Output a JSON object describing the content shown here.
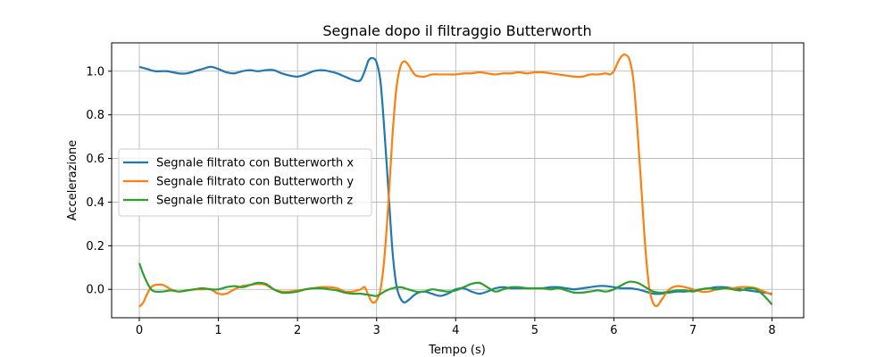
{
  "chart_data": {
    "type": "line",
    "title": "Segnale dopo il filtraggio Butterworth",
    "xlabel": "Tempo (s)",
    "ylabel": "Accelerazione",
    "xlim": [
      -0.35,
      8.4
    ],
    "ylim": [
      -0.13,
      1.13
    ],
    "xticks": [
      0,
      1,
      2,
      3,
      4,
      5,
      6,
      7,
      8
    ],
    "yticks": [
      0.0,
      0.2,
      0.4,
      0.6,
      0.8,
      1.0
    ],
    "grid": true,
    "legend_position": "center-left",
    "series": [
      {
        "name": "Segnale filtrato con Butterworth x",
        "color": "#1f77b4",
        "points": [
          [
            0,
            1.02
          ],
          [
            0.1,
            1.01
          ],
          [
            0.2,
            1.0
          ],
          [
            0.35,
            1.0
          ],
          [
            0.5,
            0.99
          ],
          [
            0.6,
            0.99
          ],
          [
            0.7,
            1.0
          ],
          [
            0.8,
            1.01
          ],
          [
            0.9,
            1.02
          ],
          [
            1.0,
            1.01
          ],
          [
            1.1,
            0.995
          ],
          [
            1.2,
            0.99
          ],
          [
            1.3,
            1.0
          ],
          [
            1.4,
            1.005
          ],
          [
            1.5,
            1.0
          ],
          [
            1.6,
            1.005
          ],
          [
            1.7,
            1.005
          ],
          [
            1.8,
            0.99
          ],
          [
            1.9,
            0.98
          ],
          [
            2.0,
            0.975
          ],
          [
            2.1,
            0.985
          ],
          [
            2.2,
            1.0
          ],
          [
            2.3,
            1.005
          ],
          [
            2.4,
            1.0
          ],
          [
            2.5,
            0.99
          ],
          [
            2.6,
            0.975
          ],
          [
            2.7,
            0.96
          ],
          [
            2.75,
            0.955
          ],
          [
            2.8,
            0.96
          ],
          [
            2.85,
            1.0
          ],
          [
            2.9,
            1.05
          ],
          [
            2.95,
            1.06
          ],
          [
            3.0,
            1.04
          ],
          [
            3.05,
            0.95
          ],
          [
            3.1,
            0.72
          ],
          [
            3.15,
            0.45
          ],
          [
            3.2,
            0.18
          ],
          [
            3.25,
            0.02
          ],
          [
            3.3,
            -0.04
          ],
          [
            3.35,
            -0.06
          ],
          [
            3.4,
            -0.05
          ],
          [
            3.5,
            -0.02
          ],
          [
            3.6,
            -0.01
          ],
          [
            3.7,
            -0.02
          ],
          [
            3.8,
            -0.03
          ],
          [
            3.9,
            -0.02
          ],
          [
            4.0,
            0.0
          ],
          [
            4.1,
            0.005
          ],
          [
            4.2,
            -0.01
          ],
          [
            4.3,
            -0.02
          ],
          [
            4.4,
            -0.01
          ],
          [
            4.5,
            0.005
          ],
          [
            4.6,
            0.01
          ],
          [
            4.7,
            0.005
          ],
          [
            4.8,
            0.005
          ],
          [
            4.9,
            0.005
          ],
          [
            5.0,
            0.005
          ],
          [
            5.1,
            0.005
          ],
          [
            5.2,
            0.01
          ],
          [
            5.3,
            0.01
          ],
          [
            5.4,
            0.005
          ],
          [
            5.5,
            0.0
          ],
          [
            5.6,
            0.005
          ],
          [
            5.7,
            0.01
          ],
          [
            5.8,
            0.015
          ],
          [
            5.9,
            0.015
          ],
          [
            6.0,
            0.01
          ],
          [
            6.1,
            0.005
          ],
          [
            6.2,
            0.005
          ],
          [
            6.3,
            0.0
          ],
          [
            6.4,
            -0.01
          ],
          [
            6.5,
            -0.02
          ],
          [
            6.6,
            -0.02
          ],
          [
            6.7,
            -0.015
          ],
          [
            6.8,
            -0.01
          ],
          [
            6.9,
            -0.01
          ],
          [
            7.0,
            -0.005
          ],
          [
            7.1,
            0.0
          ],
          [
            7.2,
            0.005
          ],
          [
            7.3,
            0.01
          ],
          [
            7.4,
            0.01
          ],
          [
            7.5,
            0.005
          ],
          [
            7.6,
            0.0
          ],
          [
            7.7,
            -0.005
          ],
          [
            7.8,
            -0.01
          ],
          [
            7.9,
            -0.015
          ],
          [
            8.0,
            -0.02
          ]
        ]
      },
      {
        "name": "Segnale filtrato con Butterworth y",
        "color": "#ff7f0e",
        "points": [
          [
            0,
            -0.08
          ],
          [
            0.05,
            -0.06
          ],
          [
            0.1,
            -0.02
          ],
          [
            0.15,
            0.01
          ],
          [
            0.2,
            0.02
          ],
          [
            0.3,
            0.02
          ],
          [
            0.4,
            0.0
          ],
          [
            0.5,
            -0.01
          ],
          [
            0.6,
            -0.005
          ],
          [
            0.7,
            0.0
          ],
          [
            0.8,
            0.0
          ],
          [
            0.9,
            0.0
          ],
          [
            1.0,
            -0.02
          ],
          [
            1.1,
            -0.02
          ],
          [
            1.2,
            0.0
          ],
          [
            1.3,
            0.015
          ],
          [
            1.4,
            0.02
          ],
          [
            1.5,
            0.025
          ],
          [
            1.6,
            0.02
          ],
          [
            1.7,
            0.0
          ],
          [
            1.8,
            -0.01
          ],
          [
            1.9,
            -0.01
          ],
          [
            2.0,
            -0.005
          ],
          [
            2.1,
            0.0
          ],
          [
            2.2,
            0.005
          ],
          [
            2.3,
            0.01
          ],
          [
            2.4,
            0.01
          ],
          [
            2.5,
            0.005
          ],
          [
            2.6,
            -0.01
          ],
          [
            2.7,
            -0.01
          ],
          [
            2.8,
            0.0
          ],
          [
            2.85,
            0.01
          ],
          [
            2.9,
            -0.03
          ],
          [
            2.95,
            -0.06
          ],
          [
            3.0,
            -0.05
          ],
          [
            3.05,
            0.0
          ],
          [
            3.1,
            0.15
          ],
          [
            3.15,
            0.4
          ],
          [
            3.2,
            0.7
          ],
          [
            3.25,
            0.92
          ],
          [
            3.3,
            1.02
          ],
          [
            3.35,
            1.045
          ],
          [
            3.4,
            1.03
          ],
          [
            3.45,
            1.0
          ],
          [
            3.5,
            0.98
          ],
          [
            3.6,
            0.975
          ],
          [
            3.7,
            0.985
          ],
          [
            3.8,
            0.985
          ],
          [
            3.9,
            0.985
          ],
          [
            4.0,
            0.985
          ],
          [
            4.1,
            0.99
          ],
          [
            4.2,
            0.99
          ],
          [
            4.3,
            0.995
          ],
          [
            4.4,
            0.99
          ],
          [
            4.5,
            0.985
          ],
          [
            4.6,
            0.99
          ],
          [
            4.7,
            0.99
          ],
          [
            4.8,
            0.995
          ],
          [
            4.9,
            0.99
          ],
          [
            5.0,
            0.995
          ],
          [
            5.1,
            0.995
          ],
          [
            5.2,
            0.99
          ],
          [
            5.3,
            0.985
          ],
          [
            5.4,
            0.98
          ],
          [
            5.5,
            0.975
          ],
          [
            5.6,
            0.975
          ],
          [
            5.7,
            0.985
          ],
          [
            5.8,
            0.985
          ],
          [
            5.9,
            0.99
          ],
          [
            5.95,
            0.985
          ],
          [
            6.0,
            1.0
          ],
          [
            6.05,
            1.04
          ],
          [
            6.1,
            1.07
          ],
          [
            6.15,
            1.075
          ],
          [
            6.2,
            1.05
          ],
          [
            6.25,
            0.95
          ],
          [
            6.3,
            0.72
          ],
          [
            6.35,
            0.45
          ],
          [
            6.4,
            0.18
          ],
          [
            6.45,
            0.0
          ],
          [
            6.5,
            -0.065
          ],
          [
            6.55,
            -0.075
          ],
          [
            6.6,
            -0.05
          ],
          [
            6.7,
            0.0
          ],
          [
            6.8,
            0.015
          ],
          [
            6.9,
            0.01
          ],
          [
            7.0,
            0.0
          ],
          [
            7.1,
            -0.01
          ],
          [
            7.2,
            -0.01
          ],
          [
            7.3,
            0.0
          ],
          [
            7.4,
            0.005
          ],
          [
            7.5,
            0.005
          ],
          [
            7.6,
            0.01
          ],
          [
            7.7,
            0.01
          ],
          [
            7.8,
            0.005
          ],
          [
            7.9,
            -0.01
          ],
          [
            8.0,
            -0.025
          ]
        ]
      },
      {
        "name": "Segnale filtrato con Butterworth z",
        "color": "#2ca02c",
        "points": [
          [
            0,
            0.12
          ],
          [
            0.05,
            0.07
          ],
          [
            0.1,
            0.03
          ],
          [
            0.15,
            0.0
          ],
          [
            0.2,
            -0.01
          ],
          [
            0.3,
            -0.01
          ],
          [
            0.4,
            -0.005
          ],
          [
            0.5,
            -0.01
          ],
          [
            0.6,
            -0.005
          ],
          [
            0.7,
            0.0
          ],
          [
            0.8,
            0.005
          ],
          [
            0.9,
            0.0
          ],
          [
            1.0,
            0.0
          ],
          [
            1.1,
            0.01
          ],
          [
            1.2,
            0.015
          ],
          [
            1.3,
            0.01
          ],
          [
            1.4,
            0.02
          ],
          [
            1.5,
            0.03
          ],
          [
            1.6,
            0.025
          ],
          [
            1.7,
            0.0
          ],
          [
            1.8,
            -0.015
          ],
          [
            1.9,
            -0.015
          ],
          [
            2.0,
            -0.01
          ],
          [
            2.1,
            0.0
          ],
          [
            2.2,
            0.005
          ],
          [
            2.3,
            0.005
          ],
          [
            2.4,
            0.0
          ],
          [
            2.5,
            -0.005
          ],
          [
            2.6,
            -0.015
          ],
          [
            2.7,
            -0.02
          ],
          [
            2.8,
            -0.02
          ],
          [
            2.9,
            -0.025
          ],
          [
            3.0,
            -0.03
          ],
          [
            3.1,
            -0.01
          ],
          [
            3.2,
            0.005
          ],
          [
            3.3,
            0.01
          ],
          [
            3.4,
            0.0
          ],
          [
            3.5,
            -0.01
          ],
          [
            3.6,
            -0.01
          ],
          [
            3.7,
            0.0
          ],
          [
            3.8,
            -0.005
          ],
          [
            3.9,
            -0.01
          ],
          [
            4.0,
            -0.005
          ],
          [
            4.1,
            0.01
          ],
          [
            4.2,
            0.025
          ],
          [
            4.3,
            0.03
          ],
          [
            4.4,
            0.01
          ],
          [
            4.5,
            -0.01
          ],
          [
            4.6,
            0.0
          ],
          [
            4.7,
            0.01
          ],
          [
            4.8,
            0.01
          ],
          [
            4.9,
            0.005
          ],
          [
            5.0,
            0.005
          ],
          [
            5.1,
            0.005
          ],
          [
            5.2,
            0.0
          ],
          [
            5.3,
            0.005
          ],
          [
            5.4,
            -0.005
          ],
          [
            5.5,
            -0.015
          ],
          [
            5.6,
            -0.015
          ],
          [
            5.7,
            -0.01
          ],
          [
            5.8,
            -0.005
          ],
          [
            5.9,
            -0.01
          ],
          [
            6.0,
            0.0
          ],
          [
            6.1,
            0.02
          ],
          [
            6.2,
            0.035
          ],
          [
            6.3,
            0.03
          ],
          [
            6.4,
            0.01
          ],
          [
            6.5,
            -0.01
          ],
          [
            6.6,
            -0.015
          ],
          [
            6.7,
            -0.01
          ],
          [
            6.8,
            -0.005
          ],
          [
            6.9,
            -0.005
          ],
          [
            7.0,
            -0.01
          ],
          [
            7.1,
            0.0
          ],
          [
            7.2,
            0.005
          ],
          [
            7.3,
            0.0
          ],
          [
            7.4,
            0.005
          ],
          [
            7.5,
            0.0
          ],
          [
            7.6,
            -0.005
          ],
          [
            7.7,
            0.005
          ],
          [
            7.8,
            0.0
          ],
          [
            7.9,
            -0.03
          ],
          [
            8.0,
            -0.07
          ]
        ]
      }
    ]
  }
}
